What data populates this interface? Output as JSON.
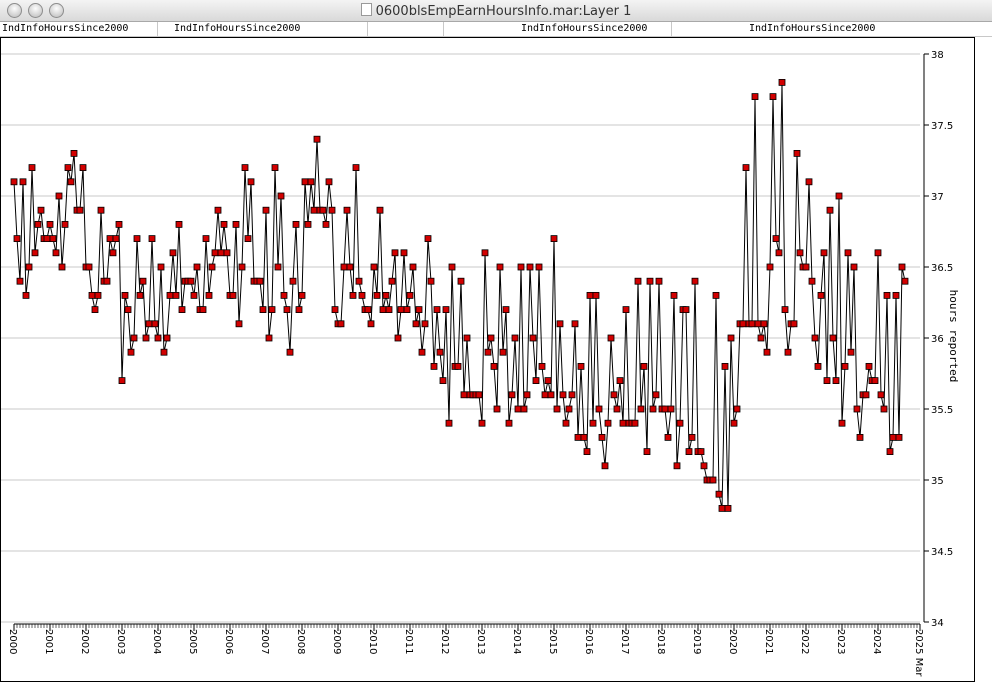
{
  "window": {
    "title": "0600blsEmpEarnHoursInfo.mar:Layer 1"
  },
  "header_labels": [
    "IndInfoHoursSince2000",
    "IndInfoHoursSince2000",
    "IndInfoHoursSince2000",
    "IndInfoHoursSince2000"
  ],
  "colors": {
    "marker_fill": "#d20000",
    "line": "#000000",
    "grid": "#c8c8c8"
  },
  "chart_data": {
    "type": "line",
    "ylabel": "hours reported",
    "ylim": [
      34,
      38
    ],
    "yticks": [
      "34",
      "34.5",
      "35",
      "35.5",
      "36",
      "36.5",
      "37",
      "37.5",
      "38"
    ],
    "xlim": [
      "2000-01",
      "2025-03"
    ],
    "xticks": [
      "2000",
      "2001",
      "2002",
      "2003",
      "2004",
      "2005",
      "2006",
      "2007",
      "2008",
      "2009",
      "2010",
      "2011",
      "2012",
      "2013",
      "2014",
      "2015",
      "2016",
      "2017",
      "2018",
      "2019",
      "2020",
      "2021",
      "2022",
      "2023",
      "2024",
      "2025 Mar"
    ],
    "grid": "horizontal",
    "marker": "square",
    "series": [
      {
        "start": "2000-01",
        "frequency": "monthly",
        "values": [
          37.1,
          36.7,
          36.4,
          37.1,
          36.3,
          36.5,
          37.2,
          36.6,
          36.8,
          36.9,
          36.7,
          36.7,
          36.8,
          36.7,
          36.6,
          37.0,
          36.5,
          36.8,
          37.2,
          37.1,
          37.3,
          36.9,
          36.9,
          37.2,
          36.5,
          36.5,
          36.3,
          36.2,
          36.3,
          36.9,
          36.4,
          36.4,
          36.7,
          36.6,
          36.7,
          36.8,
          35.7,
          36.3,
          36.2,
          35.9,
          36.0,
          36.7,
          36.3,
          36.4,
          36.0,
          36.1,
          36.7,
          36.1,
          36.0,
          36.5,
          35.9,
          36.0,
          36.3,
          36.6,
          36.3,
          36.8,
          36.2,
          36.4,
          36.4,
          36.4,
          36.3,
          36.5,
          36.2,
          36.2,
          36.7,
          36.3,
          36.5,
          36.6,
          36.9,
          36.6,
          36.8,
          36.6,
          36.3,
          36.3,
          36.8,
          36.1,
          36.5,
          37.2,
          36.7,
          37.1,
          36.4,
          36.4,
          36.4,
          36.2,
          36.9,
          36.0,
          36.2,
          37.2,
          36.5,
          37.0,
          36.3,
          36.2,
          35.9,
          36.4,
          36.8,
          36.2,
          36.3,
          37.1,
          36.8,
          37.1,
          36.9,
          37.4,
          36.9,
          36.9,
          36.8,
          37.1,
          36.9,
          36.2,
          36.1,
          36.1,
          36.5,
          36.9,
          36.5,
          36.3,
          37.2,
          36.4,
          36.3,
          36.2,
          36.2,
          36.1,
          36.5,
          36.3,
          36.9,
          36.2,
          36.3,
          36.2,
          36.4,
          36.6,
          36.0,
          36.2,
          36.6,
          36.2,
          36.3,
          36.5,
          36.1,
          36.2,
          35.9,
          36.1,
          36.7,
          36.4,
          35.8,
          36.2,
          35.9,
          35.7,
          36.2,
          35.4,
          36.5,
          35.8,
          35.8,
          36.4,
          35.6,
          36.0,
          35.6,
          35.6,
          35.6,
          35.6,
          35.4,
          36.6,
          35.9,
          36.0,
          35.8,
          35.5,
          36.5,
          35.9,
          36.2,
          35.4,
          35.6,
          36.0,
          35.5,
          36.5,
          35.5,
          35.6,
          36.5,
          36.0,
          35.7,
          36.5,
          35.8,
          35.6,
          35.7,
          35.6,
          36.7,
          35.5,
          36.1,
          35.6,
          35.4,
          35.5,
          35.6,
          36.1,
          35.3,
          35.8,
          35.3,
          35.2,
          36.3,
          35.4,
          36.3,
          35.5,
          35.3,
          35.1,
          35.4,
          36.0,
          35.6,
          35.5,
          35.7,
          35.4,
          36.2,
          35.4,
          35.4,
          35.4,
          36.4,
          35.5,
          35.8,
          35.2,
          36.4,
          35.5,
          35.6,
          36.4,
          35.5,
          35.5,
          35.3,
          35.5,
          36.3,
          35.1,
          35.4,
          36.2,
          36.2,
          35.2,
          35.3,
          36.4,
          35.2,
          35.2,
          35.1,
          35.0,
          35.0,
          35.0,
          36.3,
          34.9,
          34.8,
          35.8,
          34.8,
          36.0,
          35.4,
          35.5,
          36.1,
          36.1,
          37.2,
          36.1,
          36.1,
          37.7,
          36.1,
          36.0,
          36.1,
          35.9,
          36.5,
          37.7,
          36.7,
          36.6,
          37.8,
          36.2,
          35.9,
          36.1,
          36.1,
          37.3,
          36.6,
          36.5,
          36.5,
          37.1,
          36.4,
          36.0,
          35.8,
          36.3,
          36.6,
          35.7,
          36.9,
          36.0,
          35.7,
          37.0,
          35.4,
          35.8,
          36.6,
          35.9,
          36.5,
          35.5,
          35.3,
          35.6,
          35.6,
          35.8,
          35.7,
          35.7,
          36.6,
          35.6,
          35.5,
          36.3,
          35.2,
          35.3,
          36.3,
          35.3,
          36.5,
          36.4
        ]
      }
    ]
  }
}
